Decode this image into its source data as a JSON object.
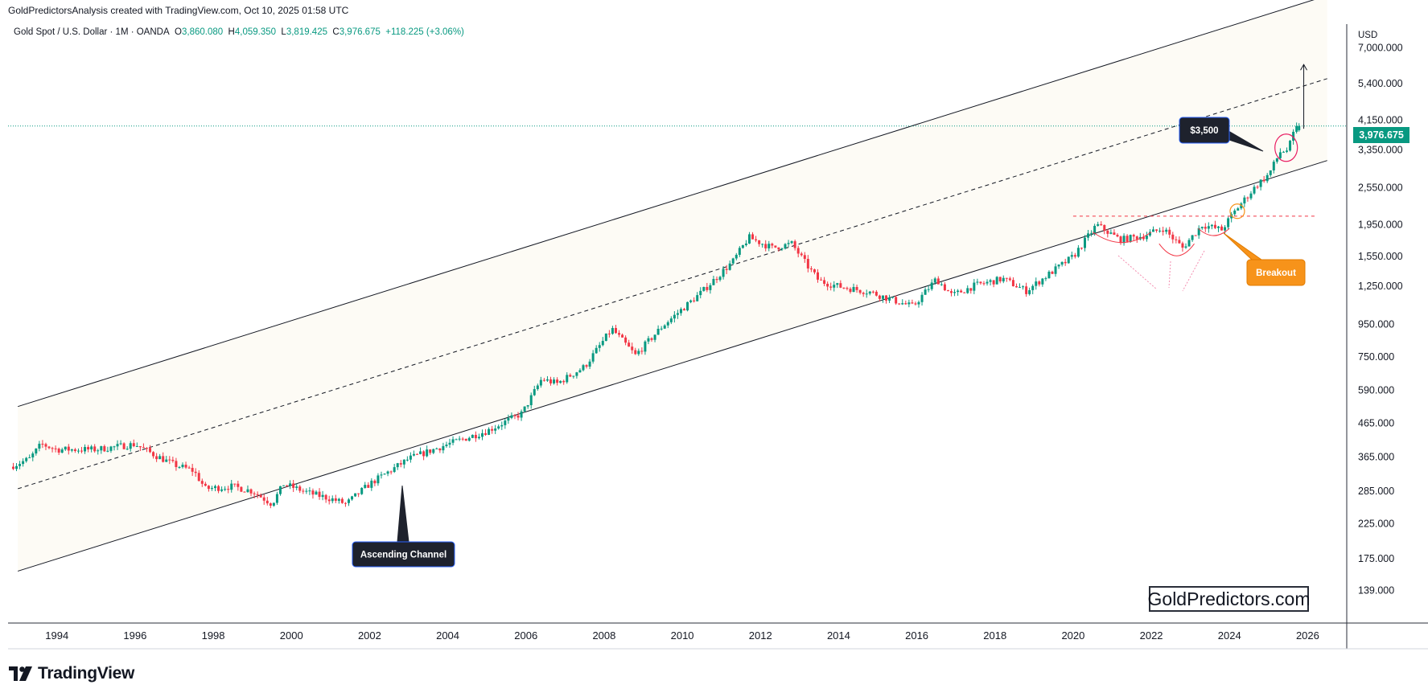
{
  "header": {
    "attribution": "GoldPredictorsAnalysis created with TradingView.com, Oct 10, 2025 01:58 UTC"
  },
  "legend": {
    "symbol": "Gold Spot / U.S. Dollar · 1M · OANDA",
    "open_label": "O",
    "open": "3,860.080",
    "high_label": "H",
    "high": "4,059.350",
    "low_label": "L",
    "low": "3,819.425",
    "close_label": "C",
    "close": "3,976.675",
    "change": "+118.225 (+3.06%)"
  },
  "price_axis": {
    "currency": "USD",
    "last_price": "3,976.675"
  },
  "watermark": "GoldPredictors.com",
  "footer": {
    "brand": "TradingView"
  },
  "colors": {
    "up": "#089981",
    "down": "#f23645",
    "channel_fill": "#fdfbf5",
    "last_price": "#089981",
    "callout_dark": "#1e222d",
    "callout_orange": "#f7931a"
  },
  "chart_data": {
    "type": "candlestick",
    "scale": "log",
    "y_ticks": [
      139,
      175,
      225,
      285,
      365,
      465,
      590,
      750,
      950,
      1250,
      1550,
      1950,
      2550,
      3350,
      4150,
      5400,
      7000
    ],
    "y_tick_labels": [
      "139.000",
      "175.000",
      "225.000",
      "285.000",
      "365.000",
      "465.000",
      "590.000",
      "750.000",
      "950.000",
      "1,250.000",
      "1,550.000",
      "1,950.000",
      "2,550.000",
      "3,350.000",
      "4,150.000",
      "5,400.000",
      "7,000.000"
    ],
    "x_ticks": [
      "1994",
      "1996",
      "1998",
      "2000",
      "2002",
      "2004",
      "2006",
      "2008",
      "2010",
      "2012",
      "2014",
      "2016",
      "2018",
      "2020",
      "2022",
      "2024",
      "2026"
    ],
    "x_range": [
      1992.75,
      2027.0
    ],
    "y_range": [
      110,
      8300
    ],
    "price_path": [
      [
        1992.8,
        340
      ],
      [
        1993.3,
        360
      ],
      [
        1993.6,
        400
      ],
      [
        1994.0,
        385
      ],
      [
        1995.0,
        385
      ],
      [
        1996.0,
        400
      ],
      [
        1996.5,
        370
      ],
      [
        1997.0,
        345
      ],
      [
        1997.5,
        330
      ],
      [
        1997.8,
        290
      ],
      [
        1998.5,
        295
      ],
      [
        1999.0,
        285
      ],
      [
        1999.5,
        260
      ],
      [
        1999.8,
        300
      ],
      [
        2000.5,
        280
      ],
      [
        2001.0,
        270
      ],
      [
        2001.4,
        260
      ],
      [
        2002.0,
        300
      ],
      [
        2003.0,
        360
      ],
      [
        2004.0,
        400
      ],
      [
        2005.0,
        440
      ],
      [
        2005.9,
        500
      ],
      [
        2006.4,
        640
      ],
      [
        2006.8,
        620
      ],
      [
        2007.5,
        700
      ],
      [
        2008.2,
        920
      ],
      [
        2008.8,
        760
      ],
      [
        2009.5,
        940
      ],
      [
        2010.5,
        1200
      ],
      [
        2011.3,
        1500
      ],
      [
        2011.7,
        1780
      ],
      [
        2012.3,
        1650
      ],
      [
        2012.8,
        1700
      ],
      [
        2013.2,
        1450
      ],
      [
        2013.5,
        1300
      ],
      [
        2014.0,
        1250
      ],
      [
        2014.8,
        1200
      ],
      [
        2015.5,
        1120
      ],
      [
        2015.9,
        1080
      ],
      [
        2016.5,
        1320
      ],
      [
        2016.9,
        1170
      ],
      [
        2017.5,
        1260
      ],
      [
        2018.2,
        1320
      ],
      [
        2018.8,
        1210
      ],
      [
        2019.5,
        1400
      ],
      [
        2020.0,
        1550
      ],
      [
        2020.6,
        1950
      ],
      [
        2021.2,
        1750
      ],
      [
        2021.8,
        1800
      ],
      [
        2022.3,
        1900
      ],
      [
        2022.8,
        1650
      ],
      [
        2023.3,
        1950
      ],
      [
        2023.8,
        1880
      ],
      [
        2024.2,
        2200
      ],
      [
        2024.7,
        2600
      ],
      [
        2025.0,
        2800
      ],
      [
        2025.3,
        3300
      ],
      [
        2025.5,
        3350
      ],
      [
        2025.67,
        3860
      ],
      [
        2025.78,
        3976.675
      ]
    ],
    "last_candle": {
      "open": 3860.08,
      "high": 4059.35,
      "low": 3819.425,
      "close": 3976.675
    },
    "annotations": {
      "channel_label": "Ascending Channel",
      "price_callout": "$3,500",
      "breakout_label": "Breakout"
    }
  }
}
